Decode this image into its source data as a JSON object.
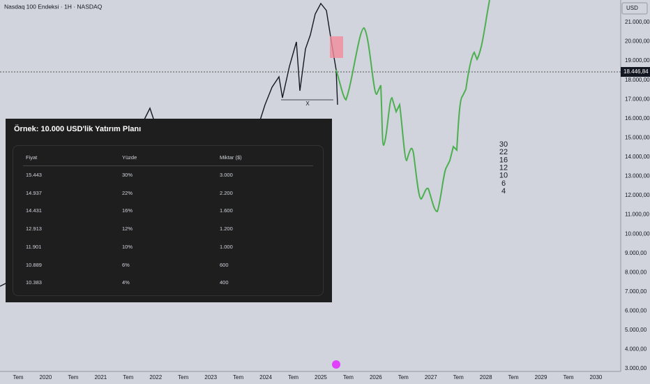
{
  "header": {
    "title": "Nasdaq 100 Endeksi · 1H · NASDAQ",
    "currency": "USD"
  },
  "price_axis": {
    "labels": [
      "21.000,00",
      "20.000,00",
      "19.000,00",
      "18.000,00",
      "17.000,00",
      "16.000,00",
      "15.000,00",
      "14.000,00",
      "13.000,00",
      "12.000,00",
      "11.000,00",
      "10.000,00",
      "9.000,00",
      "8.000,00",
      "7.000,00",
      "6.000,00",
      "5.000,00",
      "4.000,00",
      "3.000,00"
    ],
    "current": "18.446,84"
  },
  "time_axis": {
    "labels": [
      "Tem",
      "2020",
      "Tem",
      "2021",
      "Tem",
      "2022",
      "Tem",
      "2023",
      "Tem",
      "2024",
      "Tem",
      "2025",
      "Tem",
      "2026",
      "Tem",
      "2027",
      "Tem",
      "2028",
      "Tem",
      "2029",
      "Tem",
      "2030"
    ]
  },
  "annotation": {
    "x_label": "X",
    "numbers": [
      "30",
      "22",
      "16",
      "12",
      "10",
      "6",
      "4"
    ]
  },
  "table": {
    "title": "Örnek: 10.000 USD'lik Yatırım Planı",
    "header": [
      "Fiyat",
      "Yüzde",
      "Miktar ($)"
    ],
    "rows": [
      [
        "15.443",
        "30%",
        "3.000"
      ],
      [
        "14.937",
        "22%",
        "2.200"
      ],
      [
        "14.431",
        "16%",
        "1.600"
      ],
      [
        "12.913",
        "12%",
        "1.200"
      ],
      [
        "11.901",
        "10%",
        "1.000"
      ],
      [
        "10.889",
        "6%",
        "600"
      ],
      [
        "10.383",
        "4%",
        "400"
      ]
    ]
  }
}
